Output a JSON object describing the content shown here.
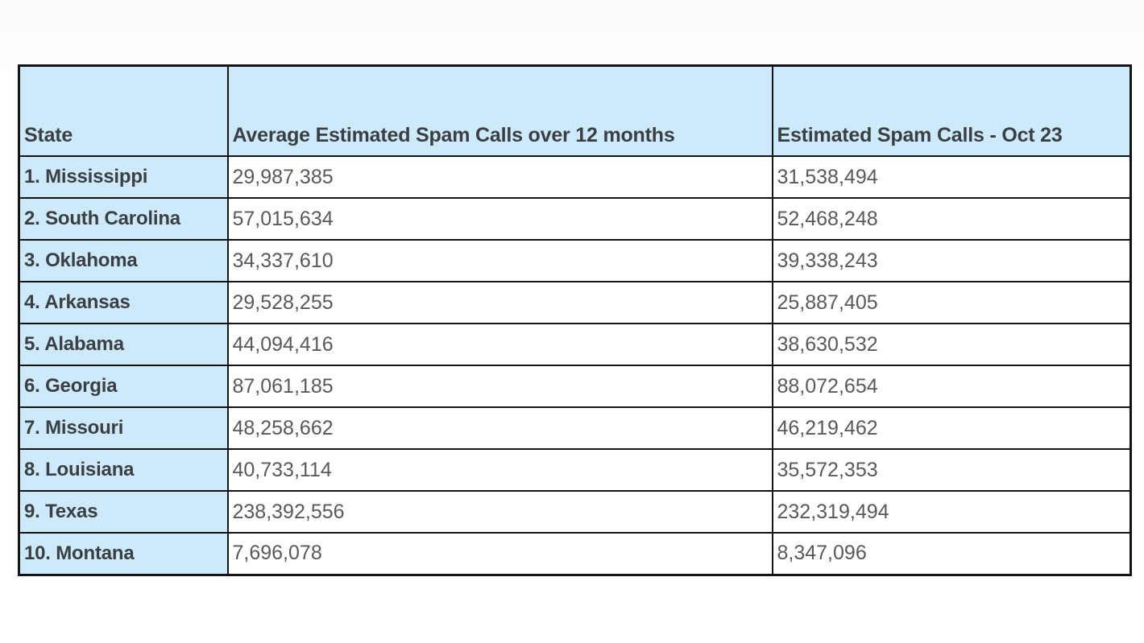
{
  "table": {
    "headers": {
      "state": "State",
      "avg": "Average Estimated Spam Calls over 12 months",
      "oct": "Estimated Spam Calls - Oct 23"
    },
    "rows": [
      {
        "state": "1. Mississippi",
        "avg": "29,987,385",
        "oct": "31,538,494"
      },
      {
        "state": "2. South Carolina",
        "avg": "57,015,634",
        "oct": "52,468,248"
      },
      {
        "state": "3. Oklahoma",
        "avg": "34,337,610",
        "oct": "39,338,243"
      },
      {
        "state": "4. Arkansas",
        "avg": "29,528,255",
        "oct": "25,887,405"
      },
      {
        "state": "5. Alabama",
        "avg": "44,094,416",
        "oct": "38,630,532"
      },
      {
        "state": "6. Georgia",
        "avg": "87,061,185",
        "oct": "88,072,654"
      },
      {
        "state": "7. Missouri",
        "avg": "48,258,662",
        "oct": "46,219,462"
      },
      {
        "state": "8. Louisiana",
        "avg": "40,733,114",
        "oct": "35,572,353"
      },
      {
        "state": "9. Texas",
        "avg": "238,392,556",
        "oct": "232,319,494"
      },
      {
        "state": "10. Montana",
        "avg": "7,696,078",
        "oct": "8,347,096"
      }
    ],
    "colors": {
      "header_bg": "#cdeafb",
      "state_column_bg": "#cdeafb",
      "data_cell_bg": "#ffffff",
      "border": "#141414",
      "header_text": "#3b3e42",
      "number_text": "#58595b"
    }
  },
  "chart_data": {
    "type": "table",
    "title": "",
    "columns": [
      "State",
      "Average Estimated Spam Calls over 12 months",
      "Estimated Spam Calls - Oct 23"
    ],
    "rows": [
      [
        "1. Mississippi",
        29987385,
        31538494
      ],
      [
        "2. South Carolina",
        57015634,
        52468248
      ],
      [
        "3. Oklahoma",
        34337610,
        39338243
      ],
      [
        "4. Arkansas",
        29528255,
        25887405
      ],
      [
        "5. Alabama",
        44094416,
        38630532
      ],
      [
        "6. Georgia",
        87061185,
        88072654
      ],
      [
        "7. Missouri",
        48258662,
        46219462
      ],
      [
        "8. Louisiana",
        40733114,
        35572353
      ],
      [
        "9. Texas",
        238392556,
        232319494
      ],
      [
        "10. Montana",
        7696078,
        8347096
      ]
    ]
  }
}
